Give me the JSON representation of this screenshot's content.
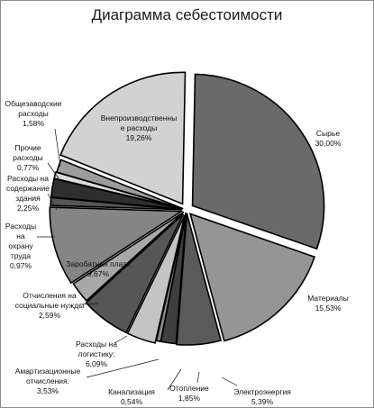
{
  "chart_data": {
    "type": "pie",
    "title": "Диаграмма себестоимости",
    "exploded": true,
    "slices": [
      {
        "label_lines": [
          "Сырье",
          "30,00%"
        ],
        "value": 30.0,
        "color": "#6a6a6a",
        "text_light": false
      },
      {
        "label_lines": [
          "Материалы",
          "15,53%"
        ],
        "value": 15.53,
        "color": "#959595",
        "text_light": false
      },
      {
        "label_lines": [
          "Электроэнергия",
          "5,39%"
        ],
        "value": 5.39,
        "color": "#5a5a5a",
        "text_light": false
      },
      {
        "label_lines": [
          "Отопление",
          "1,85%"
        ],
        "value": 1.85,
        "color": "#3f3f3f",
        "text_light": false
      },
      {
        "label_lines": [
          "Канализация",
          "0,54%"
        ],
        "value": 0.54,
        "color": "#8a8a8a",
        "text_light": false
      },
      {
        "label_lines": [
          "Амартизационные",
          "отчисления:",
          "3,53%"
        ],
        "value": 3.53,
        "color": "#c4c4c4",
        "text_light": false
      },
      {
        "label_lines": [
          "Расходы на",
          "логистику:",
          "6,09%"
        ],
        "value": 6.09,
        "color": "#565656",
        "text_light": false
      },
      {
        "label_lines": [
          "Отчисления на",
          "социальные нужды",
          "2,59%"
        ],
        "value": 2.59,
        "color": "#a8a8a8",
        "text_light": false
      },
      {
        "label_lines": [
          "Заробатная плата",
          "9,67%"
        ],
        "value": 9.67,
        "color": "#858585",
        "text_light": false
      },
      {
        "label_lines": [
          "Расходы",
          "на",
          "охрану",
          "труда",
          "0,97%"
        ],
        "value": 0.97,
        "color": "#555555",
        "text_light": false
      },
      {
        "label_lines": [
          "Расходы на",
          "содержание",
          "здания",
          "2,25%"
        ],
        "value": 2.25,
        "color": "#2e2e2e",
        "text_light": false
      },
      {
        "label_lines": [
          "Прочие",
          "расходы",
          "0,77%"
        ],
        "value": 0.77,
        "color": "#dcdcdc",
        "text_light": false
      },
      {
        "label_lines": [
          "Общезаводские",
          "расходы",
          "1,58%"
        ],
        "value": 1.58,
        "color": "#9c9c9c",
        "text_light": false
      },
      {
        "label_lines": [
          "Внепроизводственны",
          "е расходы",
          "19,26%"
        ],
        "value": 19.26,
        "color": "#d2d2d2",
        "text_light": false
      }
    ]
  }
}
